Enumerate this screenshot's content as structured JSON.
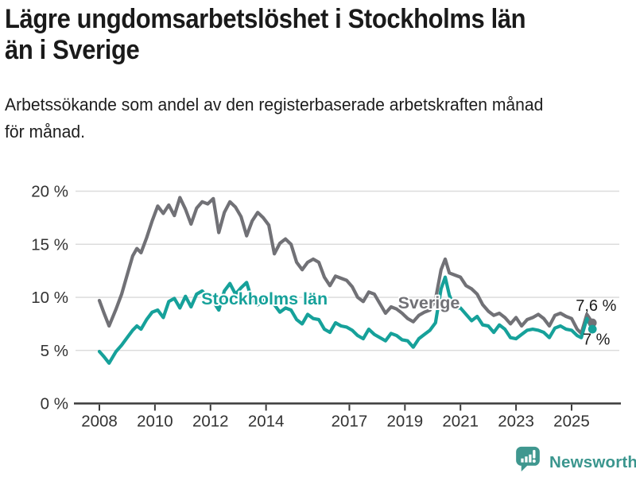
{
  "header": {
    "title_lines": [
      "Lägre ungdomsarbetslöshet i Stockholms län",
      "än i Sverige"
    ],
    "subtitle_lines": [
      "Arbetssökande som andel av den registerbaserade arbetskraften månad",
      "för månad."
    ]
  },
  "chart_data": {
    "type": "line",
    "title": "",
    "xlabel": "",
    "ylabel": "",
    "grid": true,
    "legend_position": "inline-labels",
    "ylim": [
      0,
      20
    ],
    "xlim": [
      2007.15,
      2026.75
    ],
    "y_ticks": [
      {
        "value": 0,
        "label": "0 %"
      },
      {
        "value": 5,
        "label": "5 %"
      },
      {
        "value": 10,
        "label": "10 %"
      },
      {
        "value": 15,
        "label": "15 %"
      },
      {
        "value": 20,
        "label": "20 %"
      }
    ],
    "x_ticks": [
      {
        "value": 2008,
        "label": "2008"
      },
      {
        "value": 2010,
        "label": "2010"
      },
      {
        "value": 2012,
        "label": "2012"
      },
      {
        "value": 2014,
        "label": "2014"
      },
      {
        "value": 2017,
        "label": "2017"
      },
      {
        "value": 2019,
        "label": "2019"
      },
      {
        "value": 2021,
        "label": "2021"
      },
      {
        "value": 2023,
        "label": "2023"
      },
      {
        "value": 2025,
        "label": "2025"
      }
    ],
    "x": [
      2008.0,
      2008.17,
      2008.35,
      2008.6,
      2008.8,
      2009.0,
      2009.2,
      2009.35,
      2009.5,
      2009.7,
      2009.9,
      2010.1,
      2010.3,
      2010.5,
      2010.7,
      2010.9,
      2011.1,
      2011.3,
      2011.5,
      2011.7,
      2011.9,
      2012.1,
      2012.3,
      2012.5,
      2012.7,
      2012.9,
      2013.1,
      2013.3,
      2013.5,
      2013.7,
      2013.9,
      2014.1,
      2014.3,
      2014.5,
      2014.7,
      2014.9,
      2015.1,
      2015.3,
      2015.5,
      2015.7,
      2015.9,
      2016.1,
      2016.3,
      2016.5,
      2016.7,
      2016.9,
      2017.1,
      2017.3,
      2017.5,
      2017.7,
      2017.9,
      2018.1,
      2018.3,
      2018.5,
      2018.7,
      2018.9,
      2019.1,
      2019.3,
      2019.5,
      2019.7,
      2019.9,
      2020.1,
      2020.3,
      2020.45,
      2020.6,
      2020.8,
      2021.0,
      2021.2,
      2021.4,
      2021.6,
      2021.8,
      2022.0,
      2022.2,
      2022.4,
      2022.6,
      2022.8,
      2023.0,
      2023.2,
      2023.4,
      2023.6,
      2023.8,
      2024.0,
      2024.2,
      2024.4,
      2024.6,
      2024.8,
      2025.0,
      2025.2,
      2025.35,
      2025.55,
      2025.75
    ],
    "series": [
      {
        "id": "sverige",
        "name": "Sverige",
        "color": "#717176",
        "values": [
          9.7,
          8.5,
          7.3,
          8.9,
          10.3,
          12.1,
          13.9,
          14.6,
          14.2,
          15.6,
          17.2,
          18.6,
          17.9,
          18.7,
          17.7,
          19.4,
          18.3,
          16.9,
          18.4,
          19.0,
          18.8,
          19.3,
          16.1,
          18.0,
          19.0,
          18.5,
          17.6,
          15.8,
          17.2,
          18.0,
          17.5,
          16.8,
          14.1,
          15.1,
          15.5,
          15.0,
          13.3,
          12.6,
          13.3,
          13.6,
          13.3,
          11.9,
          11.1,
          12.0,
          11.8,
          11.6,
          11.0,
          10.0,
          9.6,
          10.5,
          10.3,
          9.4,
          8.5,
          9.1,
          8.9,
          8.5,
          8.0,
          7.7,
          8.3,
          8.6,
          8.8,
          9.8,
          12.6,
          13.6,
          12.3,
          12.1,
          11.9,
          11.1,
          10.8,
          10.3,
          9.3,
          8.7,
          8.3,
          8.5,
          8.1,
          7.5,
          8.1,
          7.3,
          7.9,
          8.1,
          8.4,
          8.0,
          7.3,
          8.3,
          8.5,
          8.2,
          8.0,
          7.0,
          6.6,
          8.4,
          7.6
        ],
        "end_value": 7.6,
        "label": {
          "text": "Sverige",
          "x": 2018.75,
          "y": 8.95
        },
        "end_label": {
          "text": "7,6 %",
          "x": 2025.15,
          "y": 8.72
        }
      },
      {
        "id": "stockholm",
        "name": "Stockholms län",
        "color": "#16a19a",
        "values": [
          4.9,
          4.4,
          3.8,
          4.9,
          5.5,
          6.2,
          6.9,
          7.3,
          7.0,
          7.9,
          8.6,
          8.8,
          8.1,
          9.6,
          9.9,
          9.0,
          10.1,
          9.1,
          10.3,
          10.6,
          10.0,
          9.6,
          8.8,
          10.6,
          11.3,
          10.3,
          10.9,
          11.4,
          9.7,
          9.3,
          9.7,
          9.9,
          9.3,
          8.6,
          9.0,
          8.8,
          7.9,
          7.5,
          8.4,
          8.0,
          7.9,
          7.0,
          6.7,
          7.6,
          7.3,
          7.2,
          6.9,
          6.4,
          6.1,
          7.0,
          6.5,
          6.2,
          5.9,
          6.6,
          6.4,
          6.0,
          5.9,
          5.3,
          6.1,
          6.5,
          6.9,
          7.6,
          10.8,
          11.9,
          10.2,
          9.0,
          9.0,
          8.4,
          7.8,
          8.2,
          7.4,
          7.3,
          6.7,
          7.4,
          7.0,
          6.2,
          6.1,
          6.5,
          6.9,
          7.0,
          6.9,
          6.7,
          6.2,
          7.1,
          7.3,
          7.0,
          6.9,
          6.4,
          6.2,
          8.0,
          7.0
        ],
        "end_value": 7.0,
        "label": {
          "text": "Stockholms län",
          "x": 2011.67,
          "y": 9.32
        },
        "end_label": {
          "text": "7 %",
          "x": 2025.4,
          "y": 5.55
        }
      }
    ]
  },
  "footer": {
    "logo_icon": "bar-chart-speech-bubble-icon",
    "logo_text": "Newsworthy",
    "logo_color": "#3f978f"
  }
}
